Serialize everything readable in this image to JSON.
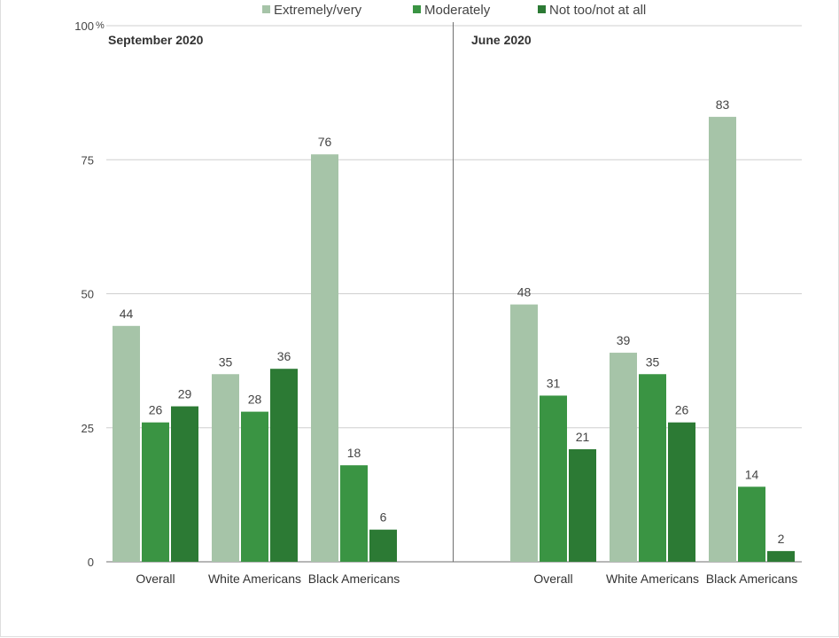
{
  "chart_data": {
    "type": "bar",
    "y_axis": {
      "ylim": [
        0,
        100
      ],
      "ticks": [
        {
          "value": 0,
          "label": "0"
        },
        {
          "value": 25,
          "label": "25"
        },
        {
          "value": 50,
          "label": "50"
        },
        {
          "value": 75,
          "label": "75"
        },
        {
          "value": 100,
          "label": "100"
        }
      ],
      "unit_suffix": "%"
    },
    "grid": true,
    "legend": {
      "placement": "top",
      "entries": [
        {
          "name": "Extremely/very",
          "color": "#a6c4a8"
        },
        {
          "name": "Moderately",
          "color": "#3a9443"
        },
        {
          "name": "Not too/not at all",
          "color": "#2c7a34"
        }
      ]
    },
    "panels": [
      {
        "title": "September 2020",
        "categories": [
          "Overall",
          "White Americans",
          "Black Americans"
        ],
        "series": [
          {
            "name": "Extremely/very",
            "values": [
              44,
              35,
              76
            ]
          },
          {
            "name": "Moderately",
            "values": [
              26,
              28,
              18
            ]
          },
          {
            "name": "Not too/not at all",
            "values": [
              29,
              36,
              6
            ]
          }
        ]
      },
      {
        "title": "June 2020",
        "categories": [
          "Overall",
          "White Americans",
          "Black Americans"
        ],
        "series": [
          {
            "name": "Extremely/very",
            "values": [
              48,
              39,
              83
            ]
          },
          {
            "name": "Moderately",
            "values": [
              31,
              35,
              14
            ]
          },
          {
            "name": "Not too/not at all",
            "values": [
              21,
              26,
              2
            ]
          }
        ]
      }
    ]
  }
}
